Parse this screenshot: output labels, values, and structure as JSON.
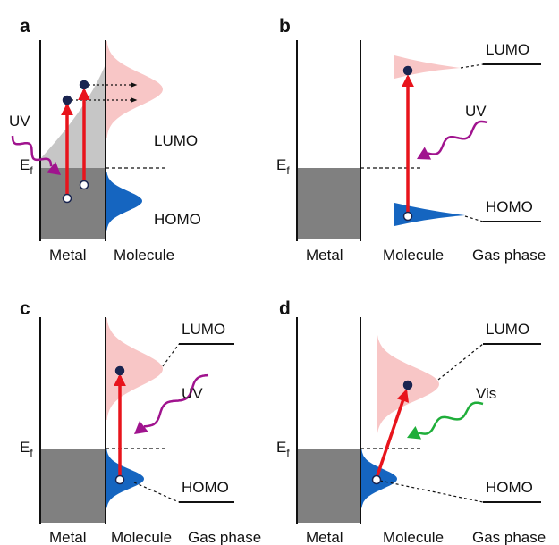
{
  "panels": [
    {
      "label": "a",
      "light": "UV",
      "fermi": "E",
      "fermi_sub": "f",
      "lumo": "LUMO",
      "homo": "HOMO",
      "axis": [
        "Metal",
        "Molecule"
      ]
    },
    {
      "label": "b",
      "light": "UV",
      "fermi": "E",
      "fermi_sub": "f",
      "lumo": "LUMO",
      "homo": "HOMO",
      "axis": [
        "Metal",
        "Molecule",
        "Gas phase"
      ]
    },
    {
      "label": "c",
      "light": "UV",
      "fermi": "E",
      "fermi_sub": "f",
      "lumo": "LUMO",
      "homo": "HOMO",
      "axis": [
        "Metal",
        "Molecule",
        "Gas phase"
      ]
    },
    {
      "label": "d",
      "light": "Vis",
      "fermi": "E",
      "fermi_sub": "f",
      "lumo": "LUMO",
      "homo": "HOMO",
      "axis": [
        "Metal",
        "Molecule",
        "Gas phase"
      ]
    }
  ]
}
